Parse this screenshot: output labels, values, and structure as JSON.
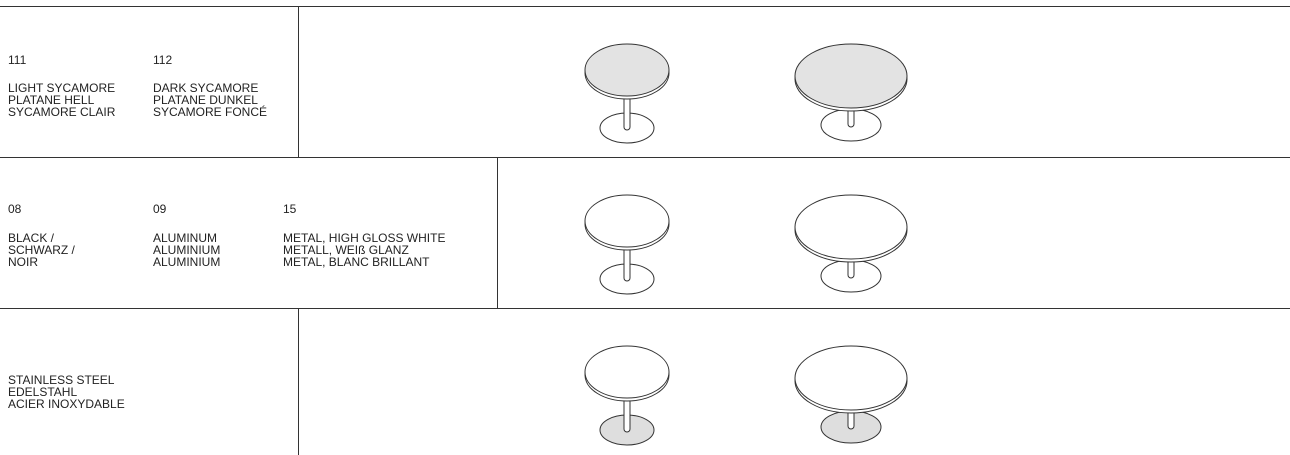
{
  "rows": [
    {
      "finishes": [
        {
          "code": "111",
          "names": [
            "LIGHT SYCAMORE",
            "PLATANE HELL",
            "SYCAMORE CLAIR"
          ]
        },
        {
          "code": "112",
          "names": [
            "DARK SYCAMORE",
            "PLATANE DUNKEL",
            "SYCAMORE FONCÉ"
          ]
        }
      ]
    },
    {
      "finishes": [
        {
          "code": "08",
          "names": [
            "BLACK /",
            "SCHWARZ /",
            "NOIR"
          ]
        },
        {
          "code": "09",
          "names": [
            "ALUMINUM",
            "ALUMINIUM",
            "ALUMINIUM"
          ]
        },
        {
          "code": "15",
          "names": [
            "METAL, HIGH GLOSS WHITE",
            "METALL, WEIß GLANZ",
            "METAL, BLANC BRILLANT"
          ]
        }
      ]
    },
    {
      "finishes": [
        {
          "names": [
            "STAINLESS STEEL",
            "EDELSTAHL",
            "ACIER INOXYDABLE"
          ]
        }
      ]
    }
  ]
}
